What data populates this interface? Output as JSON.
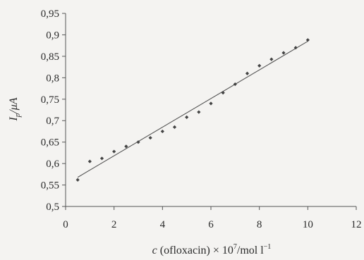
{
  "chart_data": {
    "type": "scatter",
    "title": "",
    "xlabel": {
      "var": "c",
      "text": " (ofloxacin) × 10",
      "exp": "7",
      "unit": "/mol l",
      "unit_exp": "−1"
    },
    "ylabel": {
      "var": "I",
      "sub": "p",
      "unit": "/μA"
    },
    "xlim": [
      0,
      12
    ],
    "ylim": [
      0.5,
      0.95
    ],
    "x_ticks": [
      0,
      2,
      4,
      6,
      8,
      10,
      12
    ],
    "x_tick_labels": [
      "0",
      "2",
      "4",
      "6",
      "8",
      "10",
      "12"
    ],
    "y_ticks": [
      0.5,
      0.55,
      0.6,
      0.65,
      0.7,
      0.75,
      0.8,
      0.85,
      0.9,
      0.95
    ],
    "y_tick_labels": [
      "0,5",
      "0,55",
      "0,6",
      "0,65",
      "0,7",
      "0,75",
      "0,8",
      "0,85",
      "0,9",
      "0,95"
    ],
    "grid": false,
    "series": [
      {
        "points": [
          {
            "x": 0.5,
            "y": 0.562
          },
          {
            "x": 1.0,
            "y": 0.605
          },
          {
            "x": 1.5,
            "y": 0.612
          },
          {
            "x": 2.0,
            "y": 0.628
          },
          {
            "x": 2.5,
            "y": 0.64
          },
          {
            "x": 3.0,
            "y": 0.65
          },
          {
            "x": 3.5,
            "y": 0.66
          },
          {
            "x": 4.0,
            "y": 0.675
          },
          {
            "x": 4.5,
            "y": 0.685
          },
          {
            "x": 5.0,
            "y": 0.708
          },
          {
            "x": 5.5,
            "y": 0.72
          },
          {
            "x": 6.0,
            "y": 0.74
          },
          {
            "x": 6.5,
            "y": 0.765
          },
          {
            "x": 7.0,
            "y": 0.785
          },
          {
            "x": 7.5,
            "y": 0.81
          },
          {
            "x": 8.0,
            "y": 0.828
          },
          {
            "x": 8.5,
            "y": 0.843
          },
          {
            "x": 9.0,
            "y": 0.858
          },
          {
            "x": 9.5,
            "y": 0.87
          },
          {
            "x": 10.0,
            "y": 0.888
          }
        ]
      }
    ],
    "trendline": {
      "x": [
        0.5,
        10.0
      ],
      "y": [
        0.568,
        0.885
      ]
    },
    "colors": {
      "marks": "#444444",
      "axis": "#555555",
      "line": "#555555"
    }
  }
}
